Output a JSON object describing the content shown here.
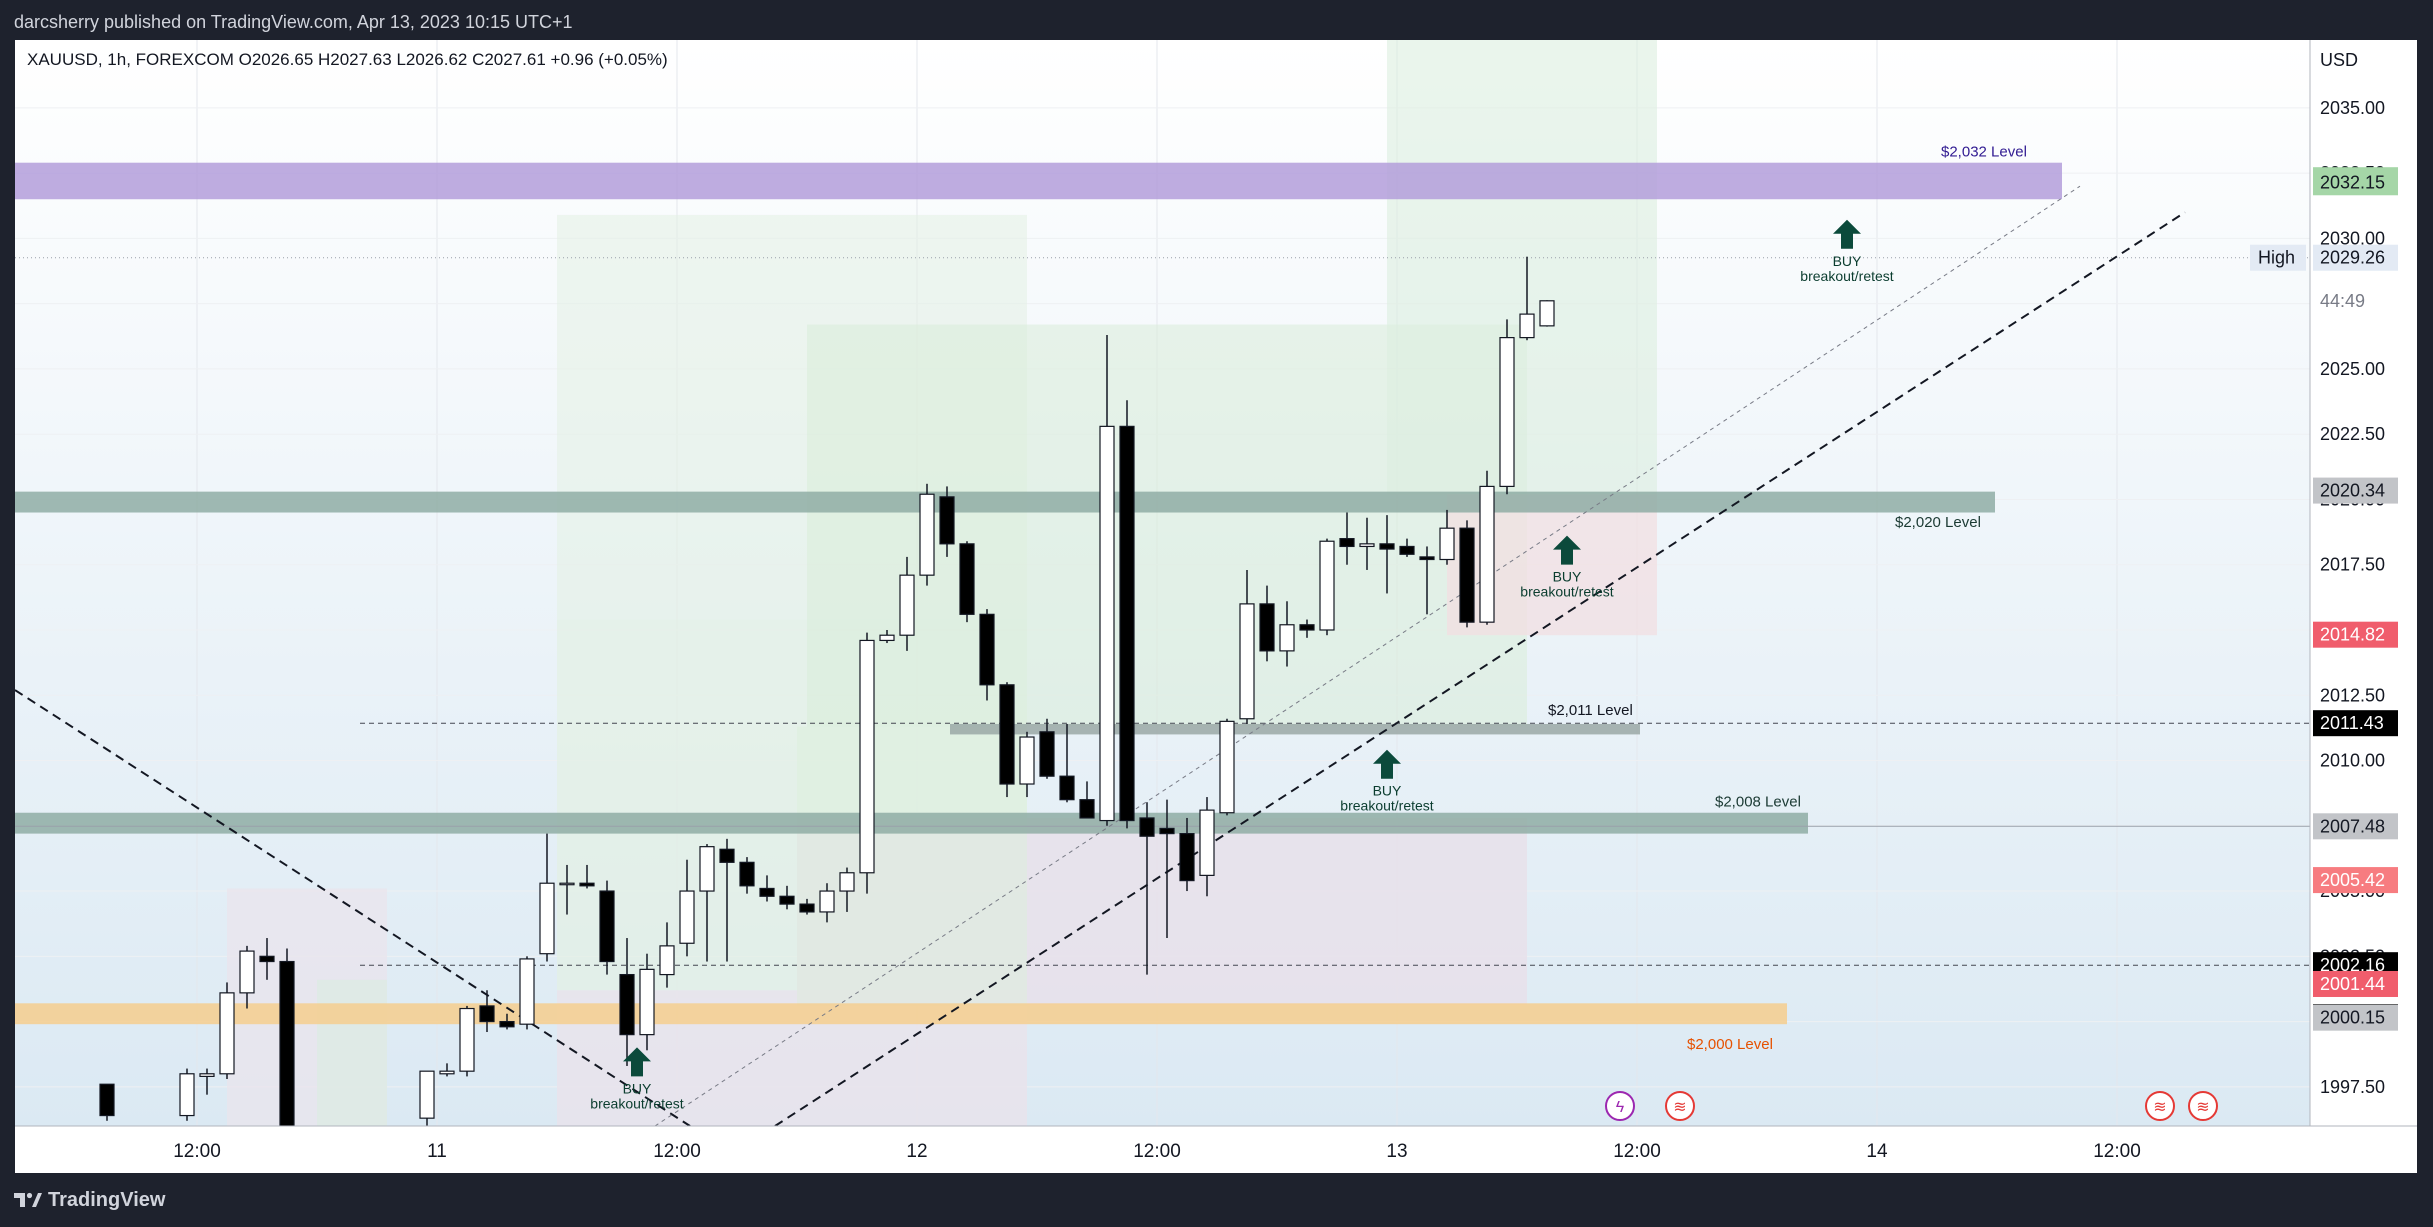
{
  "header": {
    "published_by": "darcsherry published on TradingView.com, Apr 13, 2023 10:15 UTC+1"
  },
  "symbol_bar": {
    "text": "XAUUSD, 1h, FOREXCOM  O2026.65  H2027.63  L2026.62  C2027.61  +0.96 (+0.05%)"
  },
  "footer": {
    "brand": "TradingView"
  },
  "colors": {
    "bull": "#ffffff",
    "bear": "#000000",
    "wick": "#131722",
    "purple_zone": "#b39ddb",
    "green_zone": "#8fada5",
    "orange_zone": "#f4cf93",
    "red_label": "#f05d6c",
    "gray_label": "#c2c4c8",
    "pos_label": "#a5d6a7",
    "buy_arrow": "#0b4a3b"
  },
  "chart_data": {
    "type": "candlestick",
    "symbol": "XAUUSD",
    "timeframe": "1h",
    "currency": "USD",
    "ylim": [
      1996.0,
      2037.6
    ],
    "y_ticks": [
      1997.5,
      2000.0,
      2002.5,
      2005.0,
      2007.5,
      2010.0,
      2012.5,
      2015.0,
      2017.5,
      2020.0,
      2022.5,
      2025.0,
      2027.5,
      2030.0,
      2032.5,
      2035.0
    ],
    "x_ticks": [
      {
        "label": "12:00",
        "i": -0.5
      },
      {
        "label": "11",
        "i": 11.5
      },
      {
        "label": "12:00",
        "i": 23.5
      },
      {
        "label": "12",
        "i": 35.5
      },
      {
        "label": "12:00",
        "i": 47.5
      },
      {
        "label": "13",
        "i": 59.5
      },
      {
        "label": "12:00",
        "i": 71.5
      },
      {
        "label": "14",
        "i": 83.5
      },
      {
        "label": "12:00",
        "i": 95.5
      }
    ],
    "candles": [
      [
        -5,
        1997.6,
        1997.6,
        1996.2,
        1996.4
      ],
      [
        -1,
        1996.4,
        1998.2,
        1996.2,
        1998.0
      ],
      [
        0,
        1997.9,
        1998.2,
        1997.2,
        1998.0
      ],
      [
        1,
        1998.0,
        2001.5,
        1997.8,
        2001.1
      ],
      [
        2,
        2001.1,
        2002.9,
        2000.5,
        2002.7
      ],
      [
        3,
        2002.5,
        2003.2,
        2001.6,
        2002.3
      ],
      [
        4,
        2002.3,
        2002.8,
        1996.0,
        1996.0
      ],
      [
        11,
        1996.3,
        1998.1,
        1996.0,
        1998.1
      ],
      [
        12,
        1998.0,
        1998.4,
        1997.9,
        1998.1
      ],
      [
        13,
        1998.1,
        2000.6,
        1997.9,
        2000.5
      ],
      [
        14,
        2000.6,
        2001.2,
        1999.6,
        2000.0
      ],
      [
        15,
        2000.0,
        2000.3,
        1999.7,
        1999.8
      ],
      [
        16,
        1999.9,
        2002.5,
        1999.7,
        2002.4
      ],
      [
        17,
        2002.6,
        2007.2,
        2002.3,
        2005.3
      ],
      [
        18,
        2005.3,
        2006.0,
        2004.1,
        2005.3
      ],
      [
        19,
        2005.3,
        2006.0,
        2005.1,
        2005.2
      ],
      [
        20,
        2005.0,
        2005.4,
        2001.8,
        2002.3
      ],
      [
        21,
        2001.8,
        2003.2,
        1998.3,
        1999.5
      ],
      [
        22,
        1999.5,
        2002.6,
        1998.9,
        2002.0
      ],
      [
        23,
        2001.8,
        2003.8,
        2001.3,
        2002.9
      ],
      [
        24,
        2003.0,
        2006.2,
        2002.5,
        2005.0
      ],
      [
        25,
        2005.0,
        2006.8,
        2002.3,
        2006.7
      ],
      [
        26,
        2006.6,
        2007.0,
        2002.3,
        2006.1
      ],
      [
        27,
        2006.1,
        2006.3,
        2004.9,
        2005.2
      ],
      [
        28,
        2005.1,
        2005.6,
        2004.6,
        2004.8
      ],
      [
        29,
        2004.8,
        2005.2,
        2004.3,
        2004.5
      ],
      [
        30,
        2004.5,
        2004.7,
        2004.1,
        2004.2
      ],
      [
        31,
        2004.2,
        2005.3,
        2003.8,
        2005.0
      ],
      [
        32,
        2005.0,
        2005.9,
        2004.2,
        2005.7
      ],
      [
        33,
        2005.7,
        2014.9,
        2004.9,
        2014.6
      ],
      [
        34,
        2014.6,
        2015.0,
        2014.5,
        2014.8
      ],
      [
        35,
        2014.8,
        2017.8,
        2014.2,
        2017.1
      ],
      [
        36,
        2017.1,
        2020.6,
        2016.7,
        2020.2
      ],
      [
        37,
        2020.1,
        2020.5,
        2017.8,
        2018.3
      ],
      [
        38,
        2018.3,
        2018.4,
        2015.3,
        2015.6
      ],
      [
        39,
        2015.6,
        2015.8,
        2012.3,
        2012.9
      ],
      [
        40,
        2012.9,
        2013.0,
        2008.6,
        2009.1
      ],
      [
        41,
        2009.1,
        2011.1,
        2008.6,
        2010.9
      ],
      [
        42,
        2011.1,
        2011.6,
        2009.3,
        2009.4
      ],
      [
        43,
        2009.4,
        2011.4,
        2008.4,
        2008.5
      ],
      [
        44,
        2008.5,
        2009.2,
        2007.8,
        2007.8
      ],
      [
        45,
        2007.7,
        2026.3,
        2007.5,
        2022.8
      ],
      [
        46,
        2022.8,
        2023.8,
        2007.4,
        2007.7
      ],
      [
        47,
        2007.8,
        2008.4,
        2001.8,
        2007.1
      ],
      [
        48,
        2007.4,
        2008.5,
        2003.2,
        2007.2
      ],
      [
        49,
        2007.2,
        2007.8,
        2005.0,
        2005.4
      ],
      [
        50,
        2005.6,
        2008.6,
        2004.8,
        2008.1
      ],
      [
        51,
        2008.0,
        2011.6,
        2007.9,
        2011.5
      ],
      [
        52,
        2011.6,
        2017.3,
        2011.4,
        2016.0
      ],
      [
        53,
        2016.0,
        2016.7,
        2013.8,
        2014.2
      ],
      [
        54,
        2014.2,
        2016.1,
        2013.6,
        2015.2
      ],
      [
        55,
        2015.2,
        2015.4,
        2014.7,
        2015.0
      ],
      [
        56,
        2015.0,
        2018.5,
        2014.8,
        2018.4
      ],
      [
        57,
        2018.5,
        2019.5,
        2017.5,
        2018.2
      ],
      [
        58,
        2018.2,
        2019.3,
        2017.3,
        2018.3
      ],
      [
        59,
        2018.3,
        2019.4,
        2016.4,
        2018.1
      ],
      [
        60,
        2018.2,
        2018.5,
        2017.8,
        2017.9
      ],
      [
        61,
        2017.8,
        2018.2,
        2015.6,
        2017.7
      ],
      [
        62,
        2017.7,
        2019.6,
        2017.5,
        2018.9
      ],
      [
        63,
        2018.9,
        2019.2,
        2015.1,
        2015.3
      ],
      [
        64,
        2015.3,
        2021.1,
        2015.2,
        2020.5
      ],
      [
        65,
        2020.5,
        2026.9,
        2020.2,
        2026.2
      ],
      [
        66,
        2026.2,
        2029.3,
        2026.1,
        2027.1
      ],
      [
        67,
        2026.65,
        2027.63,
        2026.62,
        2027.61
      ]
    ],
    "levels": [
      {
        "label": "$2,032 Level",
        "price": 2032.3
      },
      {
        "label": "$2,020 Level",
        "price": 2020.0
      },
      {
        "label": "$2,011 Level",
        "price": 2011.2
      },
      {
        "label": "$2,008 Level",
        "price": 2007.6
      },
      {
        "label": "$2,000 Level",
        "price": 2000.2
      }
    ],
    "buy_signals": [
      {
        "line1": "BUY",
        "line2": "breakout/retest",
        "i": 82,
        "price": 2030.1
      },
      {
        "line1": "BUY",
        "line2": "breakout/retest",
        "i": 68,
        "price": 2018.0
      },
      {
        "line1": "BUY",
        "line2": "breakout/retest",
        "i": 59,
        "price": 2009.8
      },
      {
        "line1": "BUY",
        "line2": "breakout/retest",
        "i": 21.5,
        "price": 1998.4
      }
    ],
    "price_labels": [
      {
        "value": "2032.23",
        "price": 2032.23,
        "style": "pos"
      },
      {
        "value": "2032.15",
        "price": 2032.15,
        "style": "pos"
      },
      {
        "value": "2029.26",
        "price": 2029.26,
        "style": "high"
      },
      {
        "value": "44:49",
        "price": 2027.6,
        "style": "timer"
      },
      {
        "value": "2020.34",
        "price": 2020.34,
        "style": "gray"
      },
      {
        "value": "2014.82",
        "price": 2014.82,
        "style": "red"
      },
      {
        "value": "2011.43",
        "price": 2011.43,
        "style": "black"
      },
      {
        "value": "2007.48",
        "price": 2007.48,
        "style": "gray"
      },
      {
        "value": "2005.42",
        "price": 2005.42,
        "style": "salmon"
      },
      {
        "value": "2002.16",
        "price": 2002.16,
        "style": "black"
      },
      {
        "value": "2001.44",
        "price": 2001.44,
        "style": "red"
      },
      {
        "value": "2000.17",
        "price": 2000.17,
        "style": "black"
      },
      {
        "value": "2000.15",
        "price": 2000.15,
        "style": "gray"
      }
    ],
    "high_label": "High",
    "y_unit_label": "USD",
    "partial_marker": "0"
  }
}
